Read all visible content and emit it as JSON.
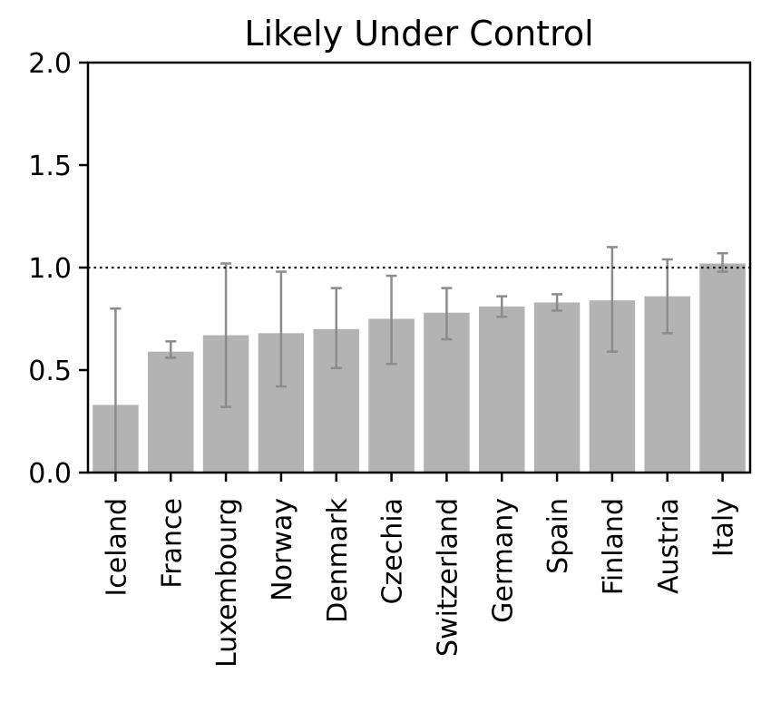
{
  "chart_data": {
    "type": "bar",
    "title": "Likely Under Control",
    "xlabel": "",
    "ylabel": "",
    "ylim": [
      0,
      2.0
    ],
    "yticks": [
      0.0,
      0.5,
      1.0,
      1.5,
      2.0
    ],
    "ytick_labels": [
      "0.0",
      "0.5",
      "1.0",
      "1.5",
      "2.0"
    ],
    "reference_line": {
      "y": 1.0,
      "style": "dotted",
      "color": "#000000"
    },
    "categories": [
      "Iceland",
      "France",
      "Luxembourg",
      "Norway",
      "Denmark",
      "Czechia",
      "Switzerland",
      "Germany",
      "Spain",
      "Finland",
      "Austria",
      "Italy"
    ],
    "values": [
      0.33,
      0.59,
      0.67,
      0.68,
      0.7,
      0.75,
      0.78,
      0.81,
      0.83,
      0.84,
      0.86,
      1.02
    ],
    "error_low": [
      0.0,
      0.56,
      0.32,
      0.42,
      0.51,
      0.53,
      0.65,
      0.76,
      0.79,
      0.59,
      0.68,
      0.98
    ],
    "error_high": [
      0.8,
      0.64,
      1.02,
      0.98,
      0.9,
      0.96,
      0.9,
      0.86,
      0.87,
      1.1,
      1.04,
      1.07
    ],
    "grid": false,
    "colors": {
      "bar": "#b3b3b3",
      "error": "#8c8c8c",
      "axis": "#000000"
    }
  }
}
